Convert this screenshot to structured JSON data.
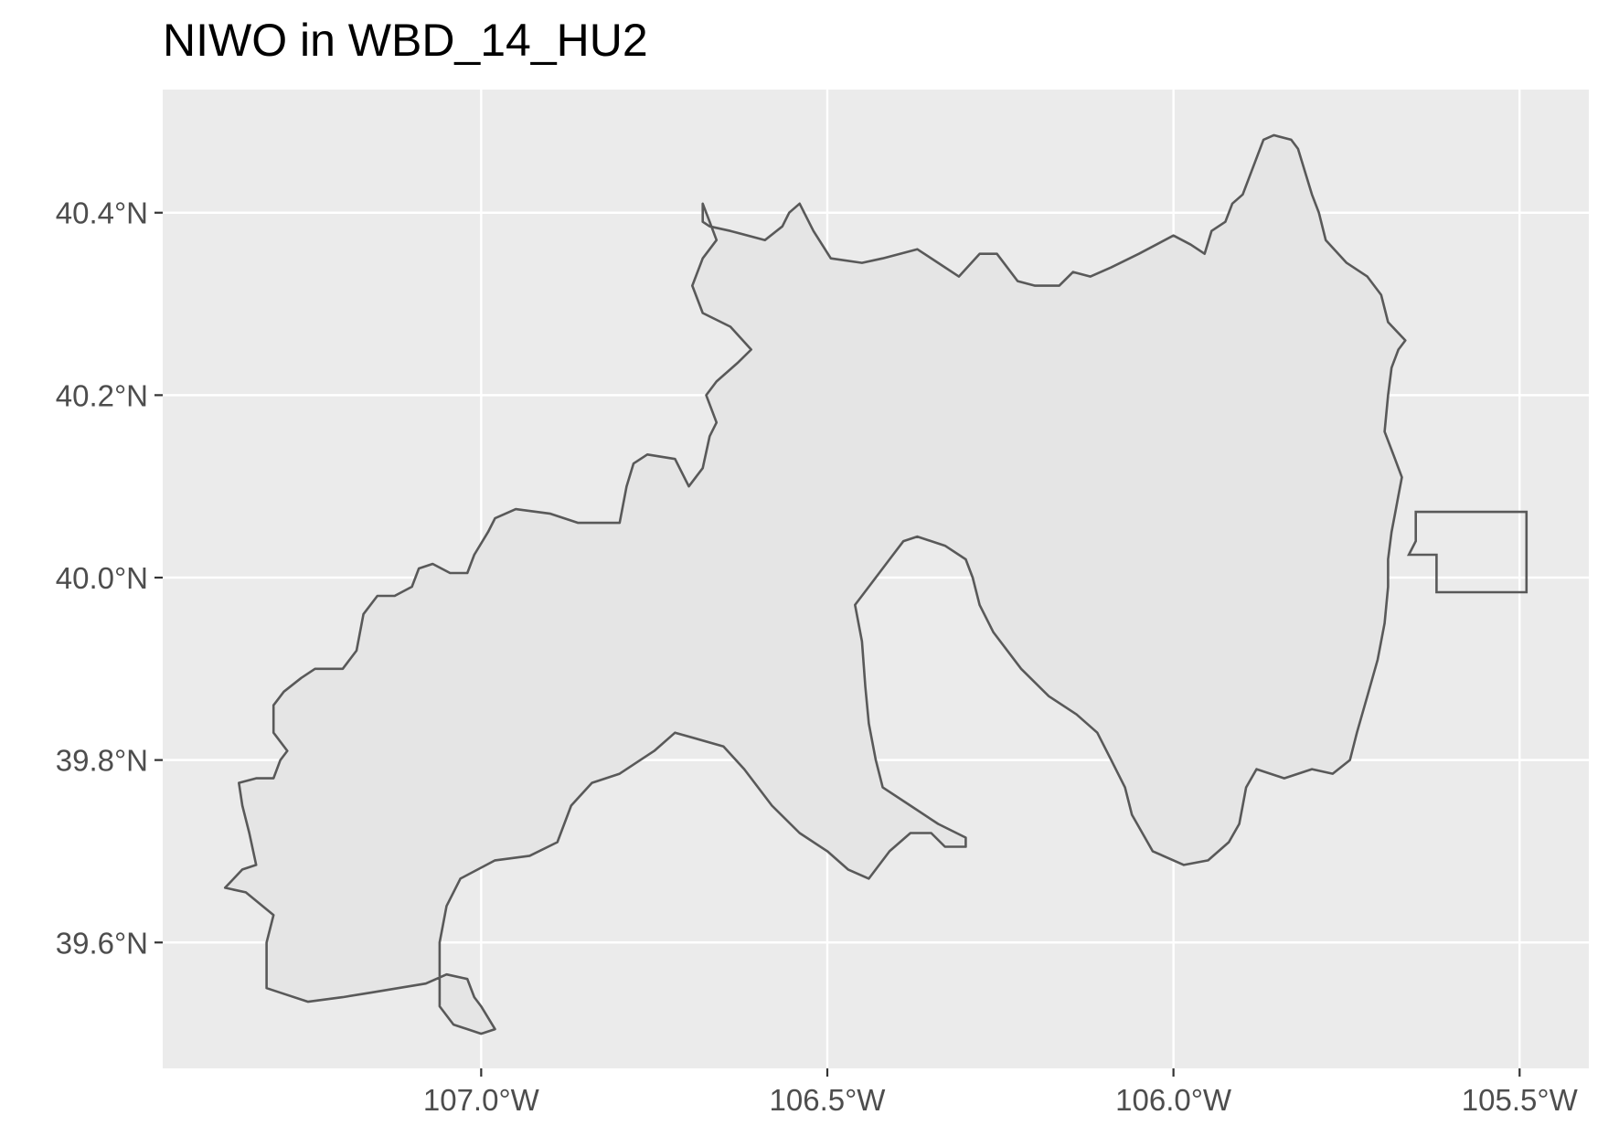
{
  "title": "NIWO in WBD_14_HU2",
  "colors": {
    "panel_background": "#ebebeb",
    "grid_line": "#ffffff",
    "watershed_fill": "#e5e5e5",
    "outline": "#595959",
    "tick_text": "#4d4d4d",
    "title_text": "#000000"
  },
  "x_axis": {
    "label": "",
    "range": [
      -107.46,
      -105.4
    ],
    "ticks": [
      {
        "value": -107.0,
        "label": "107.0°W"
      },
      {
        "value": -106.5,
        "label": "106.5°W"
      },
      {
        "value": -106.0,
        "label": "106.0°W"
      },
      {
        "value": -105.5,
        "label": "105.5°W"
      }
    ]
  },
  "y_axis": {
    "label": "",
    "range": [
      39.462,
      40.535
    ],
    "ticks": [
      {
        "value": 40.4,
        "label": "40.4°N"
      },
      {
        "value": 40.2,
        "label": "40.2°N"
      },
      {
        "value": 40.0,
        "label": "40.0°N"
      },
      {
        "value": 39.8,
        "label": "39.8°N"
      },
      {
        "value": 39.6,
        "label": "39.6°N"
      }
    ]
  },
  "features": {
    "watershed": {
      "name": "WBD_14_HU2",
      "coordinates": [
        [
          -106.68,
          40.41
        ],
        [
          -106.68,
          40.39
        ],
        [
          -106.67,
          40.385
        ],
        [
          -106.64,
          40.38
        ],
        [
          -106.59,
          40.37
        ],
        [
          -106.565,
          40.385
        ],
        [
          -106.555,
          40.4
        ],
        [
          -106.54,
          40.41
        ],
        [
          -106.52,
          40.38
        ],
        [
          -106.495,
          40.35
        ],
        [
          -106.45,
          40.345
        ],
        [
          -106.42,
          40.35
        ],
        [
          -106.37,
          40.36
        ],
        [
          -106.34,
          40.345
        ],
        [
          -106.31,
          40.33
        ],
        [
          -106.28,
          40.355
        ],
        [
          -106.255,
          40.355
        ],
        [
          -106.225,
          40.325
        ],
        [
          -106.2,
          40.32
        ],
        [
          -106.165,
          40.32
        ],
        [
          -106.145,
          40.335
        ],
        [
          -106.12,
          40.33
        ],
        [
          -106.09,
          40.34
        ],
        [
          -106.05,
          40.355
        ],
        [
          -106.0,
          40.375
        ],
        [
          -105.975,
          40.365
        ],
        [
          -105.955,
          40.355
        ],
        [
          -105.945,
          40.38
        ],
        [
          -105.925,
          40.39
        ],
        [
          -105.915,
          40.41
        ],
        [
          -105.9,
          40.42
        ],
        [
          -105.88,
          40.46
        ],
        [
          -105.87,
          40.48
        ],
        [
          -105.855,
          40.485
        ],
        [
          -105.83,
          40.48
        ],
        [
          -105.82,
          40.47
        ],
        [
          -105.8,
          40.42
        ],
        [
          -105.79,
          40.4
        ],
        [
          -105.78,
          40.37
        ],
        [
          -105.75,
          40.345
        ],
        [
          -105.72,
          40.33
        ],
        [
          -105.7,
          40.31
        ],
        [
          -105.69,
          40.28
        ],
        [
          -105.665,
          40.26
        ],
        [
          -105.675,
          40.25
        ],
        [
          -105.685,
          40.23
        ],
        [
          -105.69,
          40.2
        ],
        [
          -105.695,
          40.16
        ],
        [
          -105.68,
          40.13
        ],
        [
          -105.67,
          40.11
        ],
        [
          -105.675,
          40.09
        ],
        [
          -105.68,
          40.07
        ],
        [
          -105.685,
          40.05
        ],
        [
          -105.69,
          40.02
        ],
        [
          -105.69,
          39.99
        ],
        [
          -105.695,
          39.95
        ],
        [
          -105.705,
          39.91
        ],
        [
          -105.72,
          39.87
        ],
        [
          -105.735,
          39.83
        ],
        [
          -105.745,
          39.8
        ],
        [
          -105.77,
          39.785
        ],
        [
          -105.8,
          39.79
        ],
        [
          -105.84,
          39.78
        ],
        [
          -105.88,
          39.79
        ],
        [
          -105.895,
          39.77
        ],
        [
          -105.9,
          39.75
        ],
        [
          -105.905,
          39.73
        ],
        [
          -105.92,
          39.71
        ],
        [
          -105.95,
          39.69
        ],
        [
          -105.985,
          39.685
        ],
        [
          -106.03,
          39.7
        ],
        [
          -106.06,
          39.74
        ],
        [
          -106.07,
          39.77
        ],
        [
          -106.09,
          39.8
        ],
        [
          -106.11,
          39.83
        ],
        [
          -106.14,
          39.85
        ],
        [
          -106.18,
          39.87
        ],
        [
          -106.22,
          39.9
        ],
        [
          -106.26,
          39.94
        ],
        [
          -106.28,
          39.97
        ],
        [
          -106.29,
          40.0
        ],
        [
          -106.3,
          40.02
        ],
        [
          -106.33,
          40.035
        ],
        [
          -106.37,
          40.045
        ],
        [
          -106.39,
          40.04
        ],
        [
          -106.41,
          40.02
        ],
        [
          -106.44,
          39.99
        ],
        [
          -106.46,
          39.97
        ],
        [
          -106.45,
          39.93
        ],
        [
          -106.445,
          39.88
        ],
        [
          -106.44,
          39.84
        ],
        [
          -106.43,
          39.8
        ],
        [
          -106.42,
          39.77
        ],
        [
          -106.38,
          39.75
        ],
        [
          -106.34,
          39.73
        ],
        [
          -106.3,
          39.715
        ],
        [
          -106.3,
          39.705
        ],
        [
          -106.33,
          39.705
        ],
        [
          -106.35,
          39.72
        ],
        [
          -106.38,
          39.72
        ],
        [
          -106.41,
          39.7
        ],
        [
          -106.44,
          39.67
        ],
        [
          -106.47,
          39.68
        ],
        [
          -106.5,
          39.7
        ],
        [
          -106.54,
          39.72
        ],
        [
          -106.58,
          39.75
        ],
        [
          -106.62,
          39.79
        ],
        [
          -106.65,
          39.815
        ],
        [
          -106.72,
          39.83
        ],
        [
          -106.75,
          39.81
        ],
        [
          -106.8,
          39.785
        ],
        [
          -106.84,
          39.775
        ],
        [
          -106.87,
          39.75
        ],
        [
          -106.89,
          39.71
        ],
        [
          -106.93,
          39.695
        ],
        [
          -106.98,
          39.69
        ],
        [
          -107.03,
          39.67
        ],
        [
          -107.05,
          39.64
        ],
        [
          -107.06,
          39.6
        ],
        [
          -107.06,
          39.53
        ],
        [
          -107.04,
          39.51
        ],
        [
          -107.0,
          39.5
        ],
        [
          -106.98,
          39.505
        ],
        [
          -107.0,
          39.53
        ],
        [
          -107.01,
          39.54
        ],
        [
          -107.02,
          39.56
        ],
        [
          -107.05,
          39.565
        ],
        [
          -107.08,
          39.555
        ],
        [
          -107.12,
          39.55
        ],
        [
          -107.16,
          39.545
        ],
        [
          -107.2,
          39.54
        ],
        [
          -107.25,
          39.535
        ],
        [
          -107.29,
          39.545
        ],
        [
          -107.31,
          39.55
        ],
        [
          -107.31,
          39.6
        ],
        [
          -107.3,
          39.63
        ],
        [
          -107.34,
          39.655
        ],
        [
          -107.37,
          39.66
        ],
        [
          -107.345,
          39.68
        ],
        [
          -107.325,
          39.685
        ],
        [
          -107.335,
          39.72
        ],
        [
          -107.345,
          39.75
        ],
        [
          -107.35,
          39.775
        ],
        [
          -107.325,
          39.78
        ],
        [
          -107.3,
          39.78
        ],
        [
          -107.29,
          39.8
        ],
        [
          -107.28,
          39.81
        ],
        [
          -107.3,
          39.83
        ],
        [
          -107.3,
          39.86
        ],
        [
          -107.285,
          39.875
        ],
        [
          -107.26,
          39.89
        ],
        [
          -107.24,
          39.9
        ],
        [
          -107.2,
          39.9
        ],
        [
          -107.18,
          39.92
        ],
        [
          -107.17,
          39.96
        ],
        [
          -107.15,
          39.98
        ],
        [
          -107.125,
          39.98
        ],
        [
          -107.1,
          39.99
        ],
        [
          -107.09,
          40.01
        ],
        [
          -107.07,
          40.015
        ],
        [
          -107.045,
          40.005
        ],
        [
          -107.02,
          40.005
        ],
        [
          -107.01,
          40.025
        ],
        [
          -106.99,
          40.05
        ],
        [
          -106.98,
          40.065
        ],
        [
          -106.95,
          40.075
        ],
        [
          -106.9,
          40.07
        ],
        [
          -106.86,
          40.06
        ],
        [
          -106.8,
          40.06
        ],
        [
          -106.79,
          40.1
        ],
        [
          -106.78,
          40.125
        ],
        [
          -106.76,
          40.135
        ],
        [
          -106.72,
          40.13
        ],
        [
          -106.7,
          40.1
        ],
        [
          -106.68,
          40.12
        ],
        [
          -106.67,
          40.155
        ],
        [
          -106.66,
          40.17
        ],
        [
          -106.675,
          40.2
        ],
        [
          -106.66,
          40.215
        ],
        [
          -106.63,
          40.235
        ],
        [
          -106.61,
          40.25
        ],
        [
          -106.64,
          40.275
        ],
        [
          -106.68,
          40.29
        ],
        [
          -106.695,
          40.32
        ],
        [
          -106.68,
          40.35
        ],
        [
          -106.66,
          40.37
        ],
        [
          -106.67,
          40.39
        ],
        [
          -106.68,
          40.41
        ]
      ]
    },
    "site_box": {
      "name": "NIWO",
      "coordinates": [
        [
          -105.65,
          40.072
        ],
        [
          -105.49,
          40.072
        ],
        [
          -105.49,
          39.984
        ],
        [
          -105.62,
          39.984
        ],
        [
          -105.62,
          40.025
        ],
        [
          -105.66,
          40.025
        ],
        [
          -105.65,
          40.04
        ],
        [
          -105.65,
          40.072
        ]
      ]
    }
  }
}
